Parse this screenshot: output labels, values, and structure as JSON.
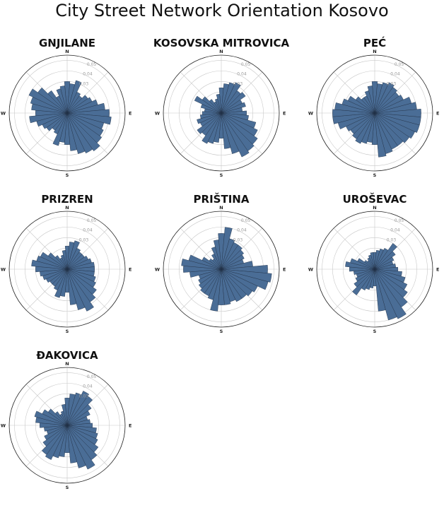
{
  "title": "City Street Network Orientation Kosovo",
  "colors": {
    "bar_fill": "#4a6d96",
    "bar_edge": "#1f2f44",
    "grid": "#c8c8c8",
    "frame": "#222222",
    "tick_label": "#9a9a9a"
  },
  "chart_data": [
    {
      "type": "polar-bar",
      "title": "GNJILANE",
      "bins": 36,
      "rticks": [
        0.01,
        0.02,
        0.03,
        0.04,
        0.05
      ],
      "rtick_labels": [
        "",
        "",
        "0.03",
        "0.04",
        "0.05"
      ],
      "rmax": 0.055,
      "direction_labels": [
        "N",
        "E",
        "S",
        "W"
      ],
      "values": [
        0.03,
        0.028,
        0.032,
        0.022,
        0.02,
        0.024,
        0.026,
        0.03,
        0.036,
        0.04,
        0.042,
        0.036,
        0.038,
        0.04,
        0.044,
        0.042,
        0.04,
        0.036,
        0.03,
        0.028,
        0.032,
        0.022,
        0.02,
        0.024,
        0.026,
        0.03,
        0.036,
        0.03,
        0.034,
        0.036,
        0.04,
        0.034,
        0.026,
        0.018,
        0.024,
        0.026
      ]
    },
    {
      "type": "polar-bar",
      "title": "KOSOVSKA MITROVICA",
      "bins": 36,
      "rticks": [
        0.01,
        0.02,
        0.03,
        0.04,
        0.05
      ],
      "rtick_labels": [
        "",
        "",
        "0.03",
        "0.04",
        "0.05"
      ],
      "rmax": 0.055,
      "direction_labels": [
        "N",
        "E",
        "S",
        "W"
      ],
      "values": [
        0.024,
        0.028,
        0.03,
        0.032,
        0.026,
        0.028,
        0.022,
        0.024,
        0.02,
        0.024,
        0.026,
        0.034,
        0.038,
        0.042,
        0.044,
        0.046,
        0.04,
        0.034,
        0.024,
        0.028,
        0.03,
        0.032,
        0.026,
        0.028,
        0.022,
        0.024,
        0.02,
        0.018,
        0.016,
        0.02,
        0.028,
        0.022,
        0.016,
        0.012,
        0.014,
        0.018
      ]
    },
    {
      "type": "polar-bar",
      "title": "PEĆ",
      "bins": 36,
      "rticks": [
        0.01,
        0.02,
        0.03,
        0.04,
        0.05
      ],
      "rtick_labels": [
        "",
        "",
        "0.03",
        "0.04",
        "0.05"
      ],
      "rmax": 0.055,
      "direction_labels": [
        "N",
        "E",
        "S",
        "W"
      ],
      "values": [
        0.03,
        0.028,
        0.03,
        0.032,
        0.03,
        0.028,
        0.03,
        0.036,
        0.04,
        0.044,
        0.044,
        0.044,
        0.042,
        0.04,
        0.038,
        0.038,
        0.04,
        0.042,
        0.03,
        0.028,
        0.03,
        0.032,
        0.03,
        0.028,
        0.03,
        0.036,
        0.04,
        0.04,
        0.038,
        0.032,
        0.028,
        0.022,
        0.018,
        0.018,
        0.022,
        0.026
      ]
    },
    {
      "type": "polar-bar",
      "title": "PRIZREN",
      "bins": 36,
      "rticks": [
        0.01,
        0.02,
        0.03,
        0.04,
        0.05
      ],
      "rtick_labels": [
        "",
        "",
        "0.03",
        "0.04",
        "0.05"
      ],
      "rmax": 0.055,
      "direction_labels": [
        "N",
        "E",
        "S",
        "W"
      ],
      "values": [
        0.022,
        0.026,
        0.028,
        0.022,
        0.02,
        0.02,
        0.022,
        0.024,
        0.026,
        0.026,
        0.026,
        0.028,
        0.03,
        0.034,
        0.038,
        0.044,
        0.04,
        0.034,
        0.022,
        0.026,
        0.028,
        0.022,
        0.02,
        0.02,
        0.022,
        0.024,
        0.026,
        0.03,
        0.034,
        0.03,
        0.028,
        0.022,
        0.016,
        0.012,
        0.014,
        0.018
      ]
    },
    {
      "type": "polar-bar",
      "title": "PRIŠTINA",
      "bins": 36,
      "rticks": [
        0.01,
        0.02,
        0.03,
        0.04,
        0.05
      ],
      "rtick_labels": [
        "",
        "",
        "0.03",
        "0.04",
        "0.05"
      ],
      "rmax": 0.055,
      "direction_labels": [
        "N",
        "E",
        "S",
        "W"
      ],
      "values": [
        0.034,
        0.04,
        0.03,
        0.028,
        0.028,
        0.026,
        0.024,
        0.022,
        0.03,
        0.044,
        0.048,
        0.046,
        0.038,
        0.036,
        0.034,
        0.034,
        0.032,
        0.034,
        0.034,
        0.04,
        0.03,
        0.028,
        0.028,
        0.026,
        0.024,
        0.022,
        0.03,
        0.036,
        0.038,
        0.032,
        0.02,
        0.014,
        0.012,
        0.016,
        0.022,
        0.028
      ]
    },
    {
      "type": "polar-bar",
      "title": "UROŠEVAC",
      "bins": 36,
      "rticks": [
        0.01,
        0.02,
        0.03,
        0.04,
        0.05
      ],
      "rtick_labels": [
        "",
        "",
        "0.03",
        "0.04",
        "0.05"
      ],
      "rmax": 0.055,
      "direction_labels": [
        "N",
        "E",
        "S",
        "W"
      ],
      "values": [
        0.016,
        0.018,
        0.02,
        0.022,
        0.03,
        0.024,
        0.02,
        0.018,
        0.02,
        0.022,
        0.026,
        0.03,
        0.034,
        0.038,
        0.044,
        0.052,
        0.05,
        0.04,
        0.016,
        0.018,
        0.02,
        0.022,
        0.03,
        0.024,
        0.02,
        0.018,
        0.02,
        0.024,
        0.028,
        0.024,
        0.018,
        0.012,
        0.01,
        0.012,
        0.014,
        0.016
      ]
    },
    {
      "type": "polar-bar",
      "title": "ĐAKOVICA",
      "bins": 36,
      "rticks": [
        0.01,
        0.02,
        0.03,
        0.04,
        0.05
      ],
      "rtick_labels": [
        "",
        "",
        "0.03",
        "0.04",
        "0.05"
      ],
      "rmax": 0.055,
      "direction_labels": [
        "N",
        "E",
        "S",
        "W"
      ],
      "values": [
        0.026,
        0.03,
        0.032,
        0.036,
        0.034,
        0.028,
        0.024,
        0.02,
        0.022,
        0.024,
        0.028,
        0.03,
        0.032,
        0.036,
        0.04,
        0.046,
        0.042,
        0.036,
        0.026,
        0.03,
        0.032,
        0.036,
        0.034,
        0.028,
        0.024,
        0.02,
        0.022,
        0.026,
        0.03,
        0.032,
        0.026,
        0.022,
        0.016,
        0.012,
        0.014,
        0.02
      ]
    }
  ]
}
